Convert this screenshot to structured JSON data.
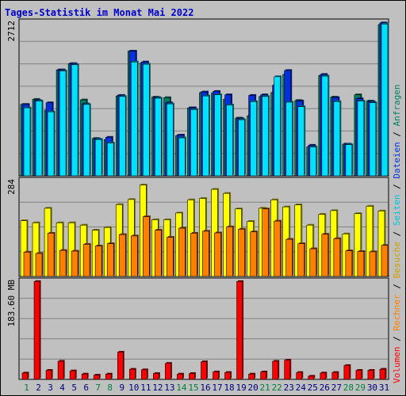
{
  "title": "Tages-Statistik im Monat Mai 2022",
  "colors": {
    "background": "#c0c0c0",
    "title": "#0000cc",
    "anfragen": "#008060",
    "dateien": "#0030e0",
    "seiten": "#00e0ff",
    "besuche": "#ffff00",
    "rechner": "#ff8000",
    "volumen": "#ff0000",
    "weekend_day": "#008040",
    "weekday": "#000080"
  },
  "chart_data": [
    {
      "type": "bar",
      "panel": "hits",
      "y_max_label": "2712",
      "ylim": [
        0,
        2712
      ],
      "categories": [
        "1",
        "2",
        "3",
        "4",
        "5",
        "6",
        "7",
        "8",
        "9",
        "10",
        "11",
        "12",
        "13",
        "14",
        "15",
        "16",
        "17",
        "18",
        "19",
        "20",
        "21",
        "22",
        "23",
        "24",
        "25",
        "26",
        "27",
        "28",
        "29",
        "30",
        "31"
      ],
      "series": [
        {
          "name": "Anfragen",
          "color": "#008060",
          "values": [
            1260,
            1350,
            1160,
            1870,
            1980,
            1340,
            660,
            640,
            1410,
            2200,
            1990,
            1390,
            1380,
            710,
            1200,
            1470,
            1460,
            1350,
            1020,
            1060,
            1400,
            1470,
            1790,
            1330,
            510,
            1770,
            1390,
            560,
            1430,
            1320,
            2670
          ]
        },
        {
          "name": "Dateien",
          "color": "#0030e0",
          "values": [
            1260,
            1330,
            1290,
            1870,
            1980,
            1270,
            650,
            680,
            1420,
            2200,
            2010,
            1380,
            1290,
            720,
            1200,
            1480,
            1490,
            1430,
            1010,
            1420,
            1430,
            1600,
            1860,
            1320,
            540,
            1790,
            1380,
            560,
            1360,
            1310,
            2700
          ]
        },
        {
          "name": "Seiten",
          "color": "#00e0ff",
          "values": [
            1200,
            1320,
            1130,
            1850,
            1960,
            1260,
            640,
            580,
            1400,
            2010,
            1970,
            1370,
            1270,
            670,
            1170,
            1410,
            1430,
            1250,
            990,
            1310,
            1400,
            1750,
            1300,
            1220,
            510,
            1760,
            1310,
            550,
            1320,
            1290,
            2680
          ]
        }
      ]
    },
    {
      "type": "bar",
      "panel": "visits",
      "y_max_label": "284",
      "ylim": [
        0,
        284
      ],
      "categories": [
        "1",
        "2",
        "3",
        "4",
        "5",
        "6",
        "7",
        "8",
        "9",
        "10",
        "11",
        "12",
        "13",
        "14",
        "15",
        "16",
        "17",
        "18",
        "19",
        "20",
        "21",
        "22",
        "23",
        "24",
        "25",
        "26",
        "27",
        "28",
        "29",
        "30",
        "31"
      ],
      "series": [
        {
          "name": "Besuche",
          "color": "#ffff00",
          "values": [
            165,
            159,
            202,
            159,
            159,
            152,
            137,
            145,
            213,
            228,
            271,
            168,
            168,
            188,
            227,
            231,
            258,
            246,
            200,
            163,
            202,
            227,
            206,
            212,
            152,
            184,
            195,
            126,
            186,
            208,
            194
          ]
        },
        {
          "name": "Rechner",
          "color": "#ff8000",
          "values": [
            72,
            68,
            128,
            77,
            75,
            95,
            90,
            97,
            124,
            120,
            177,
            137,
            116,
            143,
            128,
            134,
            129,
            147,
            140,
            132,
            200,
            164,
            110,
            97,
            82,
            125,
            112,
            76,
            74,
            73,
            92
          ]
        }
      ]
    },
    {
      "type": "bar",
      "panel": "volume",
      "y_max_label": "183.60 MB",
      "ylim": [
        0,
        183.6
      ],
      "categories": [
        "1",
        "2",
        "3",
        "4",
        "5",
        "6",
        "7",
        "8",
        "9",
        "10",
        "11",
        "12",
        "13",
        "14",
        "15",
        "16",
        "17",
        "18",
        "19",
        "20",
        "21",
        "22",
        "23",
        "24",
        "25",
        "26",
        "27",
        "28",
        "29",
        "30",
        "31"
      ],
      "series": [
        {
          "name": "Volumen",
          "color": "#ff0000",
          "values": [
            12,
            183,
            17,
            34,
            16,
            10,
            8,
            10,
            51,
            19,
            18,
            11,
            30,
            10,
            11,
            33,
            14,
            13,
            183,
            10,
            14,
            34,
            36,
            13,
            6,
            12,
            13,
            26,
            17,
            17,
            19
          ]
        }
      ]
    }
  ],
  "right_legend": [
    {
      "text": "Volumen",
      "color": "#ff0000"
    },
    {
      "text": " / ",
      "color": "#000000"
    },
    {
      "text": "Rechner",
      "color": "#ff8000"
    },
    {
      "text": " / ",
      "color": "#000000"
    },
    {
      "text": "Besuche",
      "color": "#d0a000"
    },
    {
      "text": " / ",
      "color": "#000000"
    },
    {
      "text": "Seiten",
      "color": "#00c0e0"
    },
    {
      "text": " / ",
      "color": "#000000"
    },
    {
      "text": "Dateien",
      "color": "#0030e0"
    },
    {
      "text": " / ",
      "color": "#000000"
    },
    {
      "text": "Anfragen",
      "color": "#008060"
    }
  ],
  "weekend_days": [
    "1",
    "7",
    "8",
    "14",
    "15",
    "21",
    "22",
    "28",
    "29"
  ]
}
